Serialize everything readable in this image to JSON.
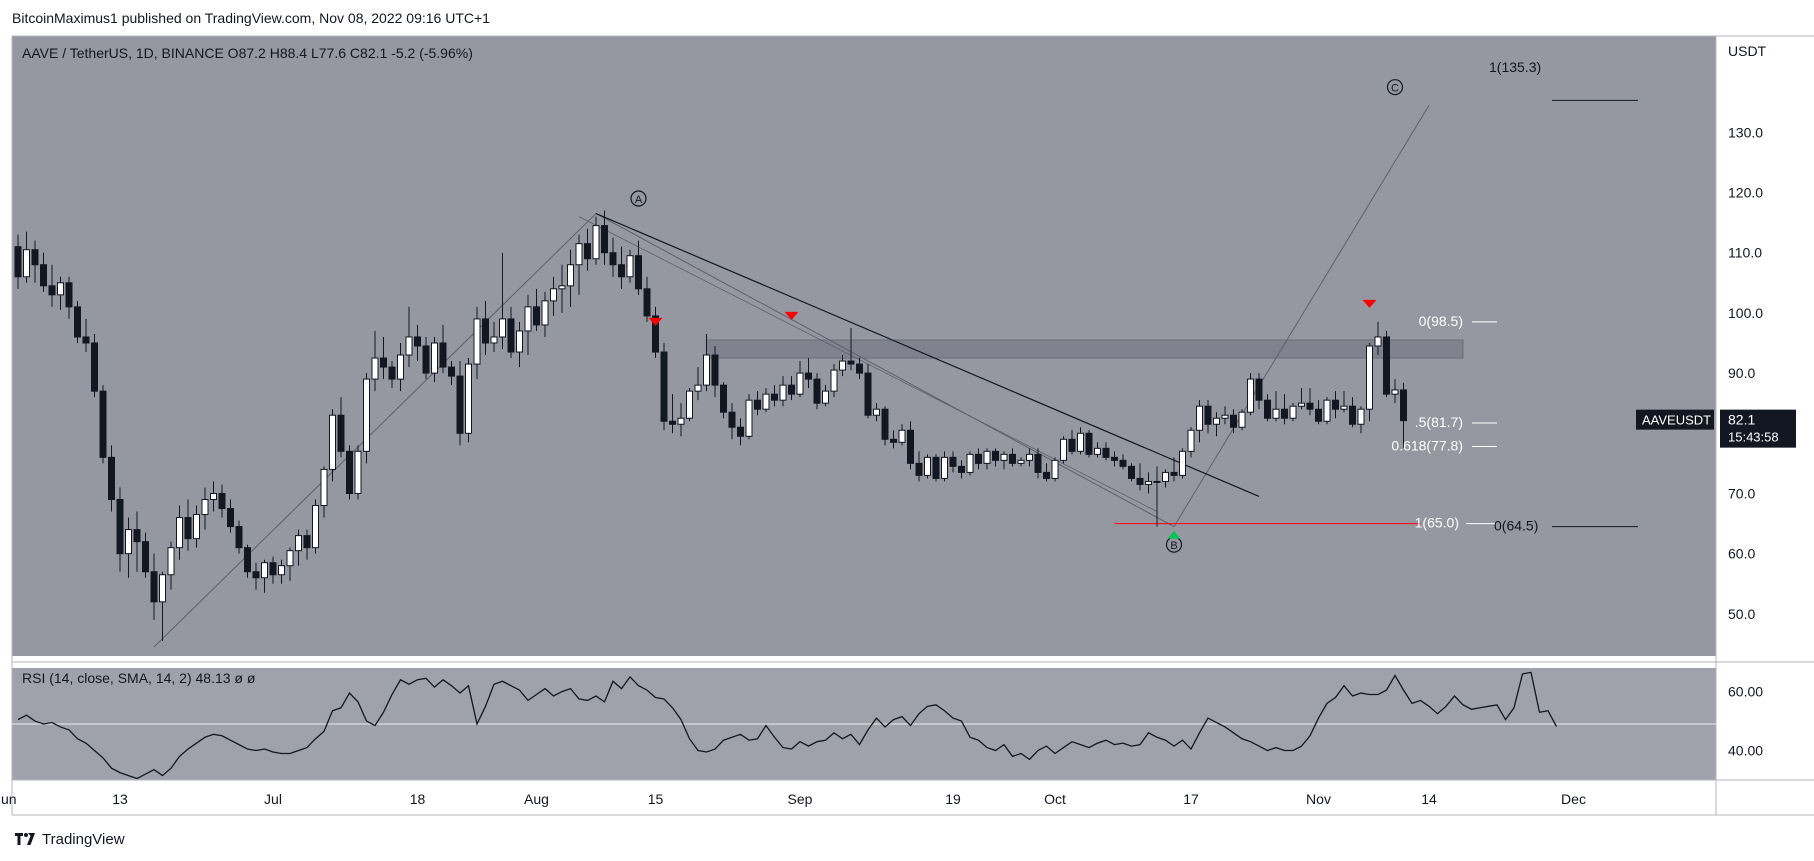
{
  "header": {
    "publisher": "BitcoinMaximus1 published on TradingView.com, Nov 08, 2022 09:16 UTC+1"
  },
  "footer": {
    "brand": "TradingView"
  },
  "colors": {
    "pane_bg": "#9598a1",
    "rsi_bg": "#9fa2ab",
    "up": "#ffffff",
    "down": "#131722",
    "marker_red": "#ff0000",
    "marker_green": "#00c853",
    "support_line": "#ff0000"
  },
  "chart_data": [
    {
      "type": "candlestick",
      "legend": {
        "symbol": "AAVE / TetherUS, 1D, BINANCE",
        "o_label": "O",
        "o": "87.2",
        "h_label": "H",
        "h": "88.4",
        "l_label": "L",
        "l": "77.6",
        "c_label": "C",
        "c": "82.1",
        "change": "-5.2 (-5.96%)"
      },
      "y_axis": {
        "unit": "USDT",
        "ticks": [
          "130.0",
          "120.0",
          "110.0",
          "100.0",
          "90.0",
          "70.0",
          "60.0",
          "50.0"
        ],
        "range": [
          43,
          146
        ]
      },
      "x_axis": {
        "ticks": [
          {
            "label": "un",
            "day": -2
          },
          {
            "label": "13",
            "day": 12
          },
          {
            "label": "Jul",
            "day": 30
          },
          {
            "label": "18",
            "day": 47
          },
          {
            "label": "Aug",
            "day": 61
          },
          {
            "label": "15",
            "day": 75
          },
          {
            "label": "Sep",
            "day": 92
          },
          {
            "label": "19",
            "day": 110
          },
          {
            "label": "Oct",
            "day": 122
          },
          {
            "label": "17",
            "day": 138
          },
          {
            "label": "Nov",
            "day": 153
          },
          {
            "label": "14",
            "day": 166
          },
          {
            "label": "Dec",
            "day": 183
          }
        ]
      },
      "price_label": {
        "symbol": "AAVEUSDT",
        "price": "82.1",
        "countdown": "15:43:58"
      },
      "resistance_zone": {
        "low": 92.5,
        "high": 95.5,
        "start_day": 81,
        "end_day": 170
      },
      "wave_labels": [
        {
          "label": "A",
          "day": 73,
          "price": 119
        },
        {
          "label": "B",
          "day": 136,
          "price": 61.5
        },
        {
          "label": "C",
          "day": 162,
          "price": 137.5
        }
      ],
      "fib_labels": [
        {
          "text": "1(135.3)",
          "price": 135.3
        },
        {
          "text": "0(98.5)",
          "price": 98.5
        },
        {
          "text": ".5(81.7)",
          "price": 81.7
        },
        {
          "text": "0.618(77.8)",
          "price": 77.8
        },
        {
          "text": "1(65.0)",
          "price": 65.0
        },
        {
          "text": "0(64.5)",
          "price": 64.5
        }
      ],
      "candles": [
        [
          111.0,
          113.0,
          104.0,
          106.0
        ],
        [
          106.0,
          113.5,
          105.0,
          110.5
        ],
        [
          110.5,
          112.0,
          105.0,
          108.0
        ],
        [
          108.0,
          110.0,
          103.5,
          104.5
        ],
        [
          104.5,
          108.0,
          101.0,
          103.0
        ],
        [
          103.0,
          106.0,
          100.5,
          105.0
        ],
        [
          105.0,
          106.0,
          99.0,
          101.0
        ],
        [
          101.0,
          102.0,
          95.0,
          96.0
        ],
        [
          96.0,
          99.0,
          93.5,
          95.0
        ],
        [
          95.0,
          96.5,
          86.0,
          87.0
        ],
        [
          87.0,
          88.0,
          75.0,
          76.0
        ],
        [
          76.0,
          78.0,
          67.0,
          69.0
        ],
        [
          69.0,
          71.0,
          57.0,
          60.0
        ],
        [
          60.0,
          66.0,
          56.0,
          64.0
        ],
        [
          64.0,
          67.0,
          57.0,
          62.0
        ],
        [
          62.0,
          63.5,
          56.0,
          57.0
        ],
        [
          57.0,
          60.0,
          49.0,
          52.0
        ],
        [
          52.0,
          57.0,
          45.5,
          56.5
        ],
        [
          56.5,
          62.0,
          54.0,
          61.0
        ],
        [
          61.0,
          68.0,
          59.0,
          66.0
        ],
        [
          66.0,
          69.0,
          60.5,
          62.5
        ],
        [
          62.5,
          68.0,
          61.0,
          66.5
        ],
        [
          66.5,
          71.0,
          64.0,
          69.0
        ],
        [
          69.0,
          72.0,
          67.0,
          70.0
        ],
        [
          70.0,
          71.5,
          66.0,
          67.5
        ],
        [
          67.5,
          69.0,
          63.5,
          64.5
        ],
        [
          64.5,
          65.5,
          60.0,
          61.0
        ],
        [
          61.0,
          61.5,
          56.0,
          57.0
        ],
        [
          57.0,
          58.5,
          54.0,
          56.0
        ],
        [
          56.0,
          59.0,
          53.5,
          58.5
        ],
        [
          58.5,
          59.5,
          55.0,
          56.5
        ],
        [
          56.5,
          59.0,
          55.0,
          58.0
        ],
        [
          58.0,
          61.0,
          55.5,
          60.5
        ],
        [
          60.5,
          64.0,
          58.0,
          63.0
        ],
        [
          63.0,
          64.0,
          59.0,
          61.0
        ],
        [
          61.0,
          69.0,
          60.0,
          68.0
        ],
        [
          68.0,
          74.5,
          66.0,
          74.0
        ],
        [
          74.0,
          84.0,
          72.0,
          83.0
        ],
        [
          83.0,
          86.0,
          76.0,
          77.0
        ],
        [
          77.0,
          78.0,
          69.0,
          70.0
        ],
        [
          70.0,
          78.0,
          69.0,
          77.0
        ],
        [
          77.0,
          90.0,
          75.0,
          89.0
        ],
        [
          89.0,
          97.0,
          87.0,
          92.5
        ],
        [
          92.5,
          96.0,
          89.0,
          91.0
        ],
        [
          91.0,
          92.0,
          87.5,
          89.0
        ],
        [
          89.0,
          95.0,
          87.0,
          93.0
        ],
        [
          93.0,
          101.0,
          91.0,
          96.0
        ],
        [
          96.0,
          98.0,
          92.0,
          94.5
        ],
        [
          94.5,
          96.0,
          89.0,
          90.0
        ],
        [
          90.0,
          96.0,
          88.5,
          95.0
        ],
        [
          95.0,
          98.0,
          90.0,
          91.0
        ],
        [
          91.0,
          92.0,
          88.0,
          89.5
        ],
        [
          89.5,
          92.0,
          78.0,
          80.0
        ],
        [
          80.0,
          92.5,
          78.5,
          91.5
        ],
        [
          91.5,
          101.0,
          89.0,
          99.0
        ],
        [
          99.0,
          102.0,
          93.0,
          95.0
        ],
        [
          95.0,
          98.5,
          93.5,
          96.0
        ],
        [
          96.0,
          110.0,
          94.0,
          99.0
        ],
        [
          99.0,
          101.0,
          92.5,
          93.5
        ],
        [
          93.5,
          98.5,
          91.0,
          97.0
        ],
        [
          97.0,
          103.0,
          93.0,
          101.0
        ],
        [
          101.0,
          104.0,
          97.0,
          98.0
        ],
        [
          98.0,
          103.5,
          96.0,
          102.0
        ],
        [
          102.0,
          106.0,
          99.5,
          104.0
        ],
        [
          104.0,
          108.0,
          100.0,
          104.5
        ],
        [
          104.5,
          110.5,
          101.0,
          108.0
        ],
        [
          108.0,
          113.0,
          103.0,
          111.5
        ],
        [
          111.5,
          114.0,
          107.0,
          109.0
        ],
        [
          109.0,
          116.0,
          108.0,
          114.5
        ],
        [
          114.5,
          117.0,
          108.0,
          110.0
        ],
        [
          110.0,
          112.5,
          106.0,
          108.0
        ],
        [
          108.0,
          111.0,
          104.0,
          106.0
        ],
        [
          106.0,
          110.5,
          105.0,
          109.5
        ],
        [
          109.5,
          112.0,
          103.0,
          104.0
        ],
        [
          104.0,
          106.0,
          98.5,
          99.5
        ],
        [
          99.5,
          101.0,
          92.5,
          93.5
        ],
        [
          93.5,
          95.0,
          80.5,
          82.0
        ],
        [
          82.0,
          86.5,
          80.0,
          81.5
        ],
        [
          81.5,
          85.0,
          79.5,
          82.5
        ],
        [
          82.5,
          87.5,
          82.0,
          87.0
        ],
        [
          87.0,
          91.0,
          85.5,
          88.0
        ],
        [
          88.0,
          96.5,
          87.0,
          93.0
        ],
        [
          93.0,
          94.5,
          86.0,
          88.0
        ],
        [
          88.0,
          88.5,
          82.5,
          83.5
        ],
        [
          83.5,
          85.0,
          79.0,
          81.0
        ],
        [
          81.0,
          82.5,
          78.0,
          79.5
        ],
        [
          79.5,
          86.5,
          79.0,
          85.5
        ],
        [
          85.5,
          87.0,
          83.0,
          84.0
        ],
        [
          84.0,
          87.5,
          83.5,
          86.5
        ],
        [
          86.5,
          88.0,
          84.5,
          85.5
        ],
        [
          85.5,
          89.5,
          84.5,
          88.0
        ],
        [
          88.0,
          89.5,
          85.5,
          86.5
        ],
        [
          86.5,
          92.0,
          86.0,
          90.0
        ],
        [
          90.0,
          92.5,
          87.5,
          89.0
        ],
        [
          89.0,
          90.0,
          84.0,
          85.0
        ],
        [
          85.0,
          88.0,
          84.5,
          87.0
        ],
        [
          87.0,
          91.5,
          86.0,
          90.5
        ],
        [
          90.5,
          93.0,
          89.5,
          92.0
        ],
        [
          92.0,
          97.5,
          90.5,
          91.5
        ],
        [
          91.5,
          92.5,
          89.0,
          90.0
        ],
        [
          90.0,
          91.5,
          82.5,
          83.0
        ],
        [
          83.0,
          85.0,
          82.0,
          84.0
        ],
        [
          84.0,
          84.5,
          78.0,
          79.0
        ],
        [
          79.0,
          80.5,
          77.5,
          78.5
        ],
        [
          78.5,
          81.5,
          78.0,
          80.5
        ],
        [
          80.5,
          82.0,
          74.0,
          75.0
        ],
        [
          75.0,
          77.0,
          72.0,
          73.0
        ],
        [
          73.0,
          76.5,
          72.5,
          76.0
        ],
        [
          76.0,
          76.5,
          72.0,
          72.5
        ],
        [
          72.5,
          77.0,
          72.0,
          76.0
        ],
        [
          76.0,
          77.0,
          73.5,
          74.5
        ],
        [
          74.5,
          75.5,
          72.5,
          73.5
        ],
        [
          73.5,
          77.0,
          73.0,
          76.5
        ],
        [
          76.5,
          77.5,
          74.0,
          75.0
        ],
        [
          75.0,
          77.5,
          74.0,
          77.0
        ],
        [
          77.0,
          77.5,
          74.5,
          75.5
        ],
        [
          75.5,
          77.0,
          74.0,
          76.5
        ],
        [
          76.5,
          77.5,
          74.5,
          75.0
        ],
        [
          75.0,
          76.0,
          74.5,
          75.5
        ],
        [
          75.5,
          77.5,
          74.5,
          76.5
        ],
        [
          76.5,
          77.5,
          72.5,
          73.5
        ],
        [
          73.5,
          75.0,
          72.0,
          72.5
        ],
        [
          72.5,
          76.0,
          72.0,
          75.5
        ],
        [
          75.5,
          79.5,
          75.0,
          79.0
        ],
        [
          79.0,
          80.5,
          76.5,
          77.0
        ],
        [
          77.0,
          81.0,
          76.5,
          80.0
        ],
        [
          80.0,
          80.5,
          76.0,
          76.5
        ],
        [
          76.5,
          78.5,
          76.0,
          77.5
        ],
        [
          77.5,
          78.5,
          75.5,
          76.0
        ],
        [
          76.0,
          77.0,
          74.5,
          75.5
        ],
        [
          75.5,
          76.5,
          74.0,
          74.5
        ],
        [
          74.5,
          75.0,
          72.0,
          72.5
        ],
        [
          72.5,
          75.0,
          70.5,
          71.5
        ],
        [
          71.5,
          73.5,
          70.0,
          72.0
        ],
        [
          72.0,
          74.5,
          64.5,
          72.0
        ],
        [
          72.0,
          74.0,
          71.0,
          73.5
        ],
        [
          73.5,
          76.0,
          72.0,
          73.0
        ],
        [
          73.0,
          77.5,
          72.5,
          77.0
        ],
        [
          77.0,
          81.0,
          76.0,
          80.5
        ],
        [
          80.5,
          85.5,
          78.5,
          84.5
        ],
        [
          84.5,
          85.5,
          80.0,
          81.5
        ],
        [
          81.5,
          83.5,
          79.5,
          82.5
        ],
        [
          82.5,
          84.5,
          81.5,
          83.0
        ],
        [
          83.0,
          84.0,
          80.0,
          81.0
        ],
        [
          81.0,
          84.0,
          80.5,
          83.5
        ],
        [
          83.5,
          90.0,
          83.0,
          89.0
        ],
        [
          89.0,
          90.0,
          84.0,
          85.5
        ],
        [
          85.5,
          86.5,
          82.0,
          82.5
        ],
        [
          82.5,
          87.0,
          82.0,
          84.0
        ],
        [
          84.0,
          86.5,
          81.5,
          82.5
        ],
        [
          82.5,
          85.0,
          82.0,
          84.5
        ],
        [
          84.5,
          87.5,
          84.0,
          85.0
        ],
        [
          85.0,
          87.5,
          83.0,
          84.0
        ],
        [
          84.0,
          85.5,
          81.5,
          82.0
        ],
        [
          82.0,
          86.0,
          81.5,
          85.5
        ],
        [
          85.5,
          87.0,
          82.5,
          84.0
        ],
        [
          84.0,
          87.0,
          83.5,
          84.5
        ],
        [
          84.5,
          86.0,
          81.0,
          81.5
        ],
        [
          81.5,
          84.5,
          80.0,
          84.0
        ],
        [
          84.0,
          95.0,
          82.0,
          94.5
        ],
        [
          94.5,
          98.5,
          93.0,
          96.0
        ],
        [
          96.0,
          97.0,
          86.0,
          86.5
        ],
        [
          86.5,
          89.0,
          85.0,
          87.2
        ],
        [
          87.2,
          88.4,
          77.6,
          82.1
        ]
      ]
    },
    {
      "type": "line",
      "legend": {
        "name": "RSI (14, close, SMA, 14, 2)",
        "value": "48.13",
        "extra1": "ø",
        "extra2": "ø"
      },
      "y_axis": {
        "ticks": [
          "60.00",
          "40.00"
        ],
        "range": [
          30,
          68
        ]
      },
      "levels": [
        49
      ],
      "values": [
        50.5,
        52.0,
        50.0,
        49.0,
        49.5,
        48.0,
        47.0,
        44.0,
        42.5,
        40.0,
        37.5,
        34.0,
        32.5,
        31.5,
        30.5,
        32.0,
        33.5,
        31.5,
        34.0,
        38.0,
        40.5,
        42.5,
        44.5,
        45.5,
        45.0,
        43.5,
        42.0,
        40.5,
        40.0,
        40.5,
        39.5,
        39.0,
        39.0,
        40.0,
        41.0,
        44.0,
        46.5,
        53.5,
        54.5,
        59.5,
        56.5,
        50.0,
        48.5,
        53.0,
        59.0,
        64.0,
        62.5,
        64.0,
        64.5,
        61.5,
        64.0,
        62.0,
        59.5,
        62.0,
        49.0,
        55.0,
        62.5,
        63.5,
        62.0,
        60.5,
        57.0,
        59.0,
        61.0,
        58.5,
        60.0,
        61.0,
        57.5,
        57.0,
        58.5,
        56.5,
        63.5,
        61.0,
        65.0,
        62.0,
        60.5,
        58.0,
        57.5,
        54.5,
        50.5,
        44.0,
        40.0,
        39.5,
        40.5,
        43.5,
        44.5,
        45.5,
        43.5,
        44.0,
        48.5,
        44.5,
        41.0,
        40.5,
        43.0,
        41.5,
        43.0,
        43.5,
        46.0,
        44.0,
        45.5,
        42.0,
        47.0,
        51.0,
        48.0,
        50.5,
        51.5,
        48.5,
        52.5,
        55.0,
        55.5,
        53.5,
        51.0,
        50.0,
        44.5,
        43.5,
        41.0,
        40.0,
        42.0,
        38.0,
        39.0,
        37.0,
        40.0,
        41.5,
        39.0,
        41.0,
        43.0,
        42.0,
        41.0,
        42.5,
        43.5,
        42.0,
        42.5,
        41.5,
        42.0,
        46.0,
        44.5,
        43.5,
        41.5,
        43.5,
        40.5,
        46.0,
        51.0,
        49.5,
        48.0,
        46.0,
        44.0,
        43.0,
        41.5,
        40.0,
        41.0,
        40.0,
        40.0,
        41.5,
        45.0,
        51.0,
        56.0,
        58.0,
        62.0,
        58.5,
        59.5,
        59.0,
        59.0,
        60.5,
        65.5,
        60.5,
        56.0,
        57.0,
        55.0,
        52.5,
        55.0,
        58.5,
        55.5,
        54.0,
        54.5,
        55.0,
        55.5,
        50.5,
        54.5,
        66.0,
        66.5,
        53.0,
        53.5,
        48.13
      ]
    }
  ]
}
